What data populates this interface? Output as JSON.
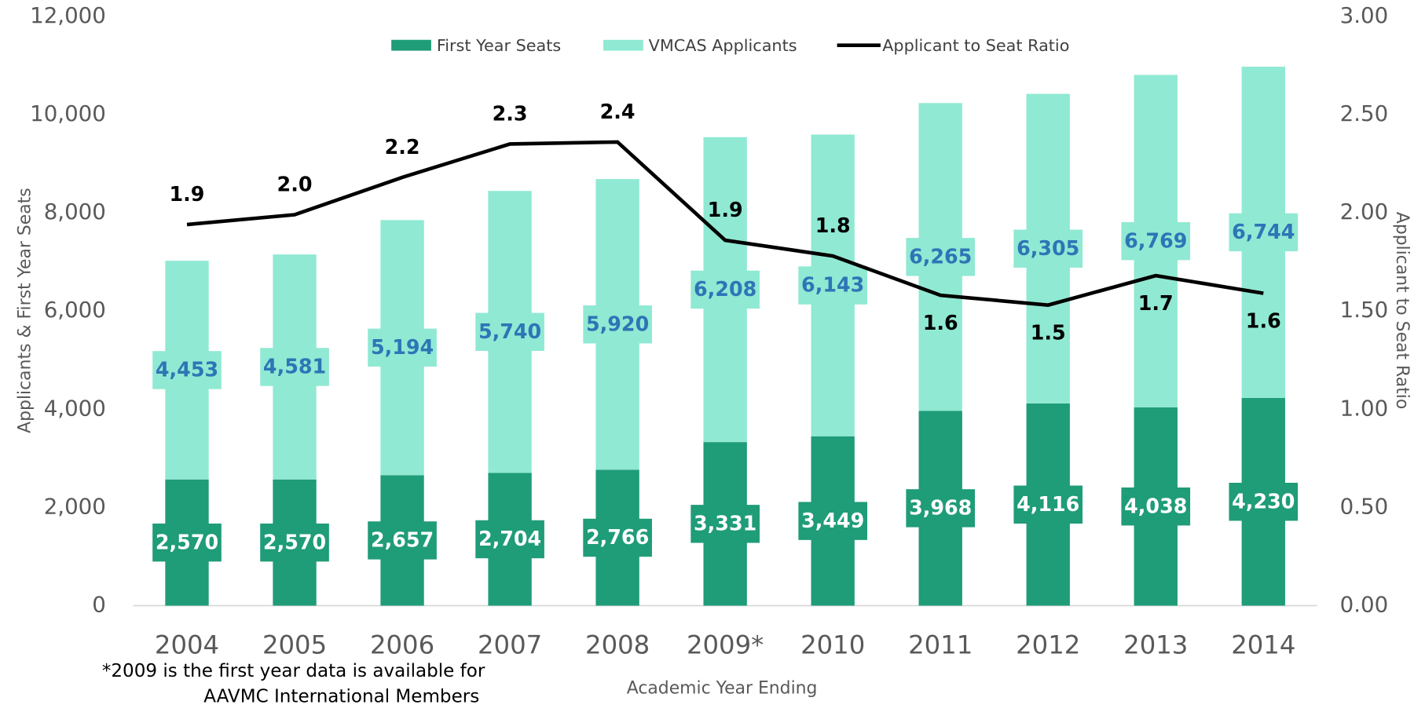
{
  "chart_data": {
    "type": "bar",
    "stacked": true,
    "categories": [
      "2004",
      "2005",
      "2006",
      "2007",
      "2008",
      "2009*",
      "2010",
      "2011",
      "2012",
      "2013",
      "2014"
    ],
    "series": [
      {
        "name": "First Year Seats",
        "color": "#1f9c78",
        "values": [
          2570,
          2570,
          2657,
          2704,
          2766,
          3331,
          3449,
          3968,
          4116,
          4038,
          4230
        ],
        "value_labels": [
          "2,570",
          "2,570",
          "2,657",
          "2,704",
          "2,766",
          "3,331",
          "3,449",
          "3,968",
          "4,116",
          "4,038",
          "4,230"
        ]
      },
      {
        "name": "VMCAS Applicants",
        "color": "#90e9d3",
        "values": [
          4453,
          4581,
          5194,
          5740,
          5920,
          6208,
          6143,
          6265,
          6305,
          6769,
          6744
        ],
        "value_labels": [
          "4,453",
          "4,581",
          "5,194",
          "5,740",
          "5,920",
          "6,208",
          "6,143",
          "6,265",
          "6,305",
          "6,769",
          "6,744"
        ]
      },
      {
        "name": "Applicant to Seat Ratio",
        "type": "line",
        "axis": "y2",
        "color": "#000000",
        "values": [
          1.94,
          1.99,
          2.18,
          2.35,
          2.36,
          1.86,
          1.78,
          1.58,
          1.53,
          1.68,
          1.59
        ],
        "value_labels": [
          "1.9",
          "2.0",
          "2.2",
          "2.3",
          "2.4",
          "1.9",
          "1.8",
          "1.6",
          "1.5",
          "1.7",
          "1.6"
        ]
      }
    ],
    "ylim": [
      0,
      12000
    ],
    "yticks": [
      0,
      {
        "value": 2000,
        "label": "2,000"
      },
      {
        "value": 4000,
        "label": "4,000"
      },
      {
        "value": 6000,
        "label": "6,000"
      },
      {
        "value": 8000,
        "label": "8,000"
      },
      {
        "value": 10000,
        "label": "10,000"
      },
      {
        "value": 12000,
        "label": "12,000"
      }
    ],
    "y2lim": [
      0,
      3
    ],
    "y2ticks": [
      {
        "value": 0,
        "label": "0.00"
      },
      {
        "value": 0.5,
        "label": "0.50"
      },
      {
        "value": 1,
        "label": "1.00"
      },
      {
        "value": 1.5,
        "label": "1.50"
      },
      {
        "value": 2,
        "label": "2.00"
      },
      {
        "value": 2.5,
        "label": "2.50"
      },
      {
        "value": 3,
        "label": "3.00"
      }
    ],
    "y_label": "Applicants & First Year Seats",
    "y2_label": "Applicant to Seat Ratio",
    "x_label": "Academic Year Ending",
    "annotations": [
      "*2009 is the first year data is available for",
      "AAVMC International Members"
    ],
    "legend": "top",
    "grid": false
  }
}
